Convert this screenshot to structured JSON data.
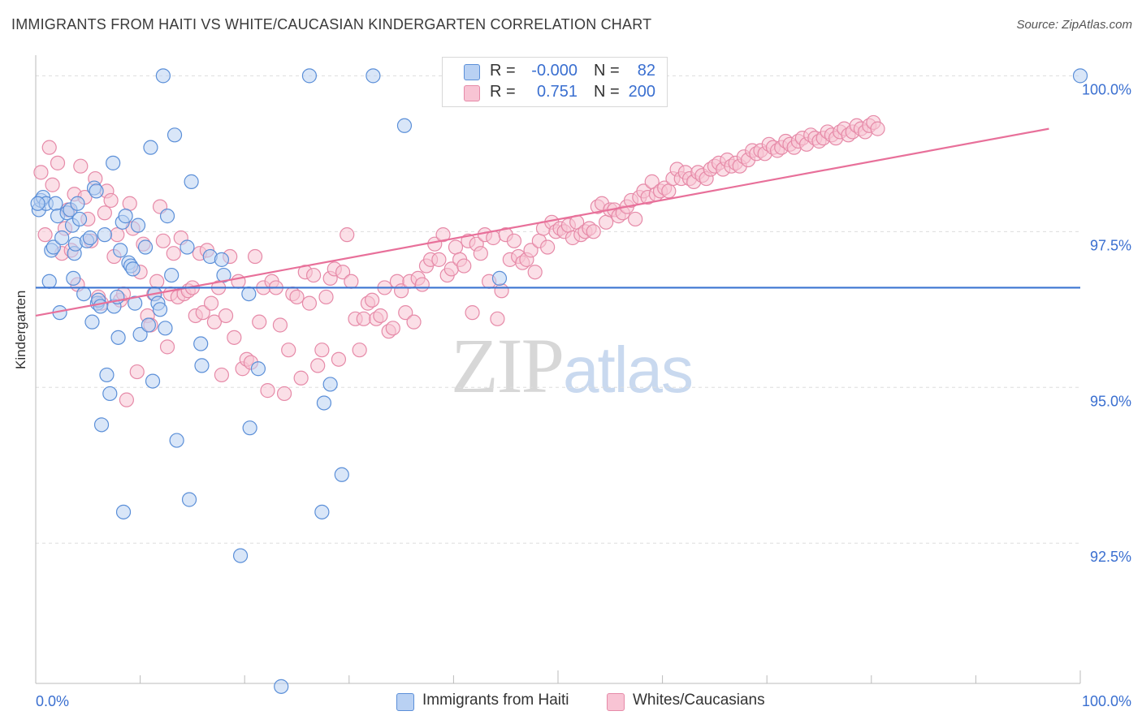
{
  "header": {
    "title": "IMMIGRANTS FROM HAITI VS WHITE/CAUCASIAN KINDERGARTEN CORRELATION CHART",
    "source": "Source: ZipAtlas.com"
  },
  "legend": {
    "row1": {
      "r_label": "R =",
      "r_value": "-0.000",
      "n_label": "N =",
      "n_value": "82"
    },
    "row2": {
      "r_label": "R =",
      "r_value": "0.751",
      "n_label": "N =",
      "n_value": "200"
    }
  },
  "watermark": {
    "zip": "ZIP",
    "atlas": "atlas"
  },
  "colors": {
    "blue_fill": "#b9d1f3",
    "blue_stroke": "#5b8fd8",
    "blue_line": "#3b74d1",
    "pink_fill": "#f8c4d4",
    "pink_stroke": "#e68aa8",
    "pink_line": "#e8709a",
    "grid": "#dddddd",
    "axis_text": "#3a6fd0"
  },
  "chart_data": {
    "type": "scatter",
    "title": "IMMIGRANTS FROM HAITI VS WHITE/CAUCASIAN KINDERGARTEN CORRELATION CHART",
    "xlabel": "",
    "ylabel": "Kindergarten",
    "xlim": [
      0,
      100
    ],
    "ylim": [
      90.25,
      100.2
    ],
    "x_tick_labels": [
      "0.0%",
      "100.0%"
    ],
    "y_ticks": [
      92.5,
      95.0,
      97.5,
      100.0
    ],
    "y_tick_labels": [
      "92.5%",
      "95.0%",
      "97.5%",
      "100.0%"
    ],
    "grid": true,
    "legend_placement": "top-center",
    "series": [
      {
        "name": "Immigrants from Haiti",
        "r": -0.0,
        "n": 82,
        "trend": {
          "x": [
            0,
            100
          ],
          "y": [
            96.6,
            96.6
          ]
        },
        "points": [
          [
            0.3,
            97.85
          ],
          [
            0.5,
            98.0
          ],
          [
            0.7,
            98.05
          ],
          [
            1.0,
            97.95
          ],
          [
            1.3,
            96.7
          ],
          [
            1.5,
            97.2
          ],
          [
            1.7,
            97.25
          ],
          [
            1.9,
            97.95
          ],
          [
            2.1,
            97.75
          ],
          [
            2.3,
            96.2
          ],
          [
            2.5,
            97.4
          ],
          [
            3.0,
            97.8
          ],
          [
            3.3,
            97.85
          ],
          [
            3.5,
            97.6
          ],
          [
            3.6,
            96.75
          ],
          [
            3.7,
            97.15
          ],
          [
            3.8,
            97.3
          ],
          [
            4.0,
            97.95
          ],
          [
            4.2,
            97.7
          ],
          [
            4.6,
            96.5
          ],
          [
            4.9,
            97.35
          ],
          [
            5.2,
            97.4
          ],
          [
            5.4,
            96.05
          ],
          [
            5.6,
            98.2
          ],
          [
            5.8,
            98.15
          ],
          [
            5.9,
            96.35
          ],
          [
            6.0,
            96.4
          ],
          [
            6.2,
            96.3
          ],
          [
            6.3,
            94.4
          ],
          [
            6.6,
            97.45
          ],
          [
            6.8,
            95.2
          ],
          [
            7.1,
            94.9
          ],
          [
            7.4,
            98.6
          ],
          [
            7.5,
            96.3
          ],
          [
            7.8,
            96.45
          ],
          [
            7.9,
            95.8
          ],
          [
            8.1,
            97.2
          ],
          [
            8.3,
            97.65
          ],
          [
            8.4,
            93.0
          ],
          [
            8.6,
            97.75
          ],
          [
            8.9,
            97.0
          ],
          [
            9.1,
            96.95
          ],
          [
            9.3,
            96.9
          ],
          [
            9.5,
            96.35
          ],
          [
            9.8,
            97.6
          ],
          [
            10.0,
            95.85
          ],
          [
            10.5,
            97.25
          ],
          [
            10.8,
            96.0
          ],
          [
            11.0,
            98.85
          ],
          [
            11.2,
            95.1
          ],
          [
            11.4,
            96.5
          ],
          [
            11.7,
            96.35
          ],
          [
            11.9,
            96.25
          ],
          [
            12.2,
            100.0
          ],
          [
            12.4,
            95.95
          ],
          [
            12.6,
            97.75
          ],
          [
            13.0,
            96.8
          ],
          [
            13.3,
            99.05
          ],
          [
            13.5,
            94.15
          ],
          [
            14.5,
            97.25
          ],
          [
            14.7,
            93.2
          ],
          [
            14.9,
            98.3
          ],
          [
            15.8,
            95.7
          ],
          [
            15.9,
            95.35
          ],
          [
            16.7,
            97.1
          ],
          [
            17.8,
            97.05
          ],
          [
            18.0,
            96.8
          ],
          [
            19.6,
            92.3
          ],
          [
            20.4,
            96.5
          ],
          [
            20.5,
            94.35
          ],
          [
            21.3,
            95.3
          ],
          [
            23.5,
            90.2
          ],
          [
            26.2,
            100.0
          ],
          [
            27.4,
            93.0
          ],
          [
            27.6,
            94.75
          ],
          [
            28.2,
            95.05
          ],
          [
            29.3,
            93.6
          ],
          [
            32.3,
            100.0
          ],
          [
            35.3,
            99.2
          ],
          [
            44.4,
            96.75
          ],
          [
            100.0,
            100.0
          ],
          [
            0.2,
            97.95
          ]
        ]
      },
      {
        "name": "Whites/Caucasians",
        "r": 0.751,
        "n": 200,
        "trend": {
          "x": [
            0,
            97
          ],
          "y": [
            96.15,
            99.15
          ]
        },
        "points": [
          [
            0.5,
            98.45
          ],
          [
            0.9,
            97.45
          ],
          [
            1.3,
            98.85
          ],
          [
            1.6,
            98.25
          ],
          [
            2.1,
            98.6
          ],
          [
            2.5,
            97.15
          ],
          [
            2.8,
            97.55
          ],
          [
            3.1,
            97.85
          ],
          [
            3.4,
            97.2
          ],
          [
            3.7,
            98.1
          ],
          [
            4.0,
            96.65
          ],
          [
            4.3,
            98.55
          ],
          [
            4.7,
            98.05
          ],
          [
            5.0,
            97.7
          ],
          [
            5.3,
            97.35
          ],
          [
            5.7,
            98.35
          ],
          [
            6.0,
            96.45
          ],
          [
            6.3,
            96.35
          ],
          [
            6.6,
            97.8
          ],
          [
            6.8,
            98.15
          ],
          [
            7.2,
            98.0
          ],
          [
            7.5,
            97.1
          ],
          [
            7.8,
            97.45
          ],
          [
            8.1,
            96.4
          ],
          [
            8.4,
            96.5
          ],
          [
            8.7,
            94.8
          ],
          [
            9.0,
            97.95
          ],
          [
            9.3,
            97.55
          ],
          [
            9.7,
            95.25
          ],
          [
            10.0,
            96.85
          ],
          [
            10.3,
            97.3
          ],
          [
            10.7,
            96.15
          ],
          [
            11.0,
            96.0
          ],
          [
            11.3,
            96.5
          ],
          [
            11.6,
            96.7
          ],
          [
            11.9,
            97.9
          ],
          [
            12.2,
            97.35
          ],
          [
            12.6,
            95.65
          ],
          [
            12.9,
            96.5
          ],
          [
            13.2,
            97.15
          ],
          [
            13.6,
            96.45
          ],
          [
            13.9,
            97.4
          ],
          [
            14.2,
            96.5
          ],
          [
            14.6,
            96.55
          ],
          [
            15.0,
            96.6
          ],
          [
            15.3,
            96.15
          ],
          [
            15.7,
            97.15
          ],
          [
            16.0,
            96.2
          ],
          [
            16.4,
            97.2
          ],
          [
            16.8,
            96.35
          ],
          [
            17.1,
            96.05
          ],
          [
            17.5,
            96.6
          ],
          [
            17.8,
            95.2
          ],
          [
            18.2,
            96.15
          ],
          [
            18.6,
            97.1
          ],
          [
            19.0,
            95.8
          ],
          [
            19.4,
            96.7
          ],
          [
            19.8,
            95.3
          ],
          [
            20.2,
            95.45
          ],
          [
            20.6,
            95.4
          ],
          [
            21.0,
            97.1
          ],
          [
            21.4,
            96.05
          ],
          [
            21.8,
            96.6
          ],
          [
            22.2,
            94.95
          ],
          [
            22.6,
            96.7
          ],
          [
            23.0,
            96.6
          ],
          [
            23.4,
            96.0
          ],
          [
            23.8,
            94.9
          ],
          [
            24.2,
            95.6
          ],
          [
            24.6,
            96.5
          ],
          [
            25.0,
            96.45
          ],
          [
            25.4,
            95.15
          ],
          [
            25.8,
            96.85
          ],
          [
            26.2,
            96.35
          ],
          [
            26.6,
            96.8
          ],
          [
            27.0,
            95.35
          ],
          [
            27.4,
            95.6
          ],
          [
            27.8,
            96.45
          ],
          [
            28.2,
            96.75
          ],
          [
            28.6,
            96.9
          ],
          [
            29.0,
            95.45
          ],
          [
            29.4,
            96.85
          ],
          [
            29.8,
            97.45
          ],
          [
            30.2,
            96.7
          ],
          [
            30.6,
            96.1
          ],
          [
            31.0,
            95.6
          ],
          [
            31.4,
            96.1
          ],
          [
            31.8,
            96.35
          ],
          [
            32.2,
            96.4
          ],
          [
            32.6,
            96.1
          ],
          [
            33.0,
            96.15
          ],
          [
            33.4,
            96.6
          ],
          [
            33.8,
            95.9
          ],
          [
            34.2,
            95.95
          ],
          [
            34.6,
            96.7
          ],
          [
            35.0,
            96.55
          ],
          [
            35.4,
            96.2
          ],
          [
            35.8,
            96.7
          ],
          [
            36.2,
            96.05
          ],
          [
            36.6,
            96.75
          ],
          [
            37.0,
            96.65
          ],
          [
            37.4,
            96.95
          ],
          [
            37.8,
            97.05
          ],
          [
            38.2,
            97.3
          ],
          [
            38.6,
            97.05
          ],
          [
            39.0,
            97.45
          ],
          [
            39.4,
            96.8
          ],
          [
            39.8,
            96.9
          ],
          [
            40.2,
            97.25
          ],
          [
            40.6,
            97.05
          ],
          [
            41.0,
            96.95
          ],
          [
            41.4,
            97.35
          ],
          [
            41.8,
            96.2
          ],
          [
            42.2,
            97.3
          ],
          [
            42.6,
            97.15
          ],
          [
            43.0,
            97.45
          ],
          [
            43.4,
            96.7
          ],
          [
            43.8,
            97.4
          ],
          [
            44.2,
            96.1
          ],
          [
            44.6,
            96.55
          ],
          [
            45.0,
            97.45
          ],
          [
            45.4,
            97.05
          ],
          [
            45.8,
            97.35
          ],
          [
            46.2,
            97.1
          ],
          [
            46.6,
            97.0
          ],
          [
            47.0,
            97.05
          ],
          [
            47.4,
            97.2
          ],
          [
            47.8,
            96.85
          ],
          [
            48.2,
            97.35
          ],
          [
            48.6,
            97.55
          ],
          [
            49.0,
            97.25
          ],
          [
            49.4,
            97.65
          ],
          [
            49.8,
            97.5
          ],
          [
            50.2,
            97.55
          ],
          [
            50.6,
            97.5
          ],
          [
            51.0,
            97.6
          ],
          [
            51.4,
            97.4
          ],
          [
            51.8,
            97.65
          ],
          [
            52.2,
            97.45
          ],
          [
            52.6,
            97.5
          ],
          [
            53.0,
            97.55
          ],
          [
            53.4,
            97.5
          ],
          [
            53.8,
            97.9
          ],
          [
            54.2,
            97.95
          ],
          [
            54.6,
            97.65
          ],
          [
            55.0,
            97.85
          ],
          [
            55.4,
            97.85
          ],
          [
            55.8,
            97.75
          ],
          [
            56.2,
            97.8
          ],
          [
            56.6,
            97.9
          ],
          [
            57.0,
            98.0
          ],
          [
            57.4,
            97.7
          ],
          [
            57.8,
            98.05
          ],
          [
            58.2,
            98.15
          ],
          [
            58.6,
            98.05
          ],
          [
            59.0,
            98.3
          ],
          [
            59.4,
            98.1
          ],
          [
            59.8,
            98.15
          ],
          [
            60.2,
            98.2
          ],
          [
            60.6,
            98.15
          ],
          [
            61.0,
            98.35
          ],
          [
            61.4,
            98.5
          ],
          [
            61.8,
            98.35
          ],
          [
            62.2,
            98.45
          ],
          [
            62.6,
            98.35
          ],
          [
            63.0,
            98.3
          ],
          [
            63.4,
            98.45
          ],
          [
            63.8,
            98.4
          ],
          [
            64.2,
            98.35
          ],
          [
            64.6,
            98.5
          ],
          [
            65.0,
            98.55
          ],
          [
            65.4,
            98.6
          ],
          [
            65.8,
            98.5
          ],
          [
            66.2,
            98.65
          ],
          [
            66.6,
            98.55
          ],
          [
            67.0,
            98.6
          ],
          [
            67.4,
            98.55
          ],
          [
            67.8,
            98.7
          ],
          [
            68.2,
            98.65
          ],
          [
            68.6,
            98.8
          ],
          [
            69.0,
            98.75
          ],
          [
            69.4,
            98.8
          ],
          [
            69.8,
            98.75
          ],
          [
            70.2,
            98.9
          ],
          [
            70.6,
            98.85
          ],
          [
            71.0,
            98.8
          ],
          [
            71.4,
            98.85
          ],
          [
            71.8,
            98.95
          ],
          [
            72.2,
            98.9
          ],
          [
            72.6,
            98.85
          ],
          [
            73.0,
            98.95
          ],
          [
            73.4,
            99.0
          ],
          [
            73.8,
            98.9
          ],
          [
            74.2,
            99.05
          ],
          [
            74.6,
            99.0
          ],
          [
            75.0,
            98.95
          ],
          [
            75.4,
            99.0
          ],
          [
            75.8,
            99.1
          ],
          [
            76.2,
            99.05
          ],
          [
            76.6,
            99.0
          ],
          [
            77.0,
            99.1
          ],
          [
            77.4,
            99.15
          ],
          [
            77.8,
            99.05
          ],
          [
            78.2,
            99.1
          ],
          [
            78.6,
            99.2
          ],
          [
            79.0,
            99.15
          ],
          [
            79.4,
            99.1
          ],
          [
            79.8,
            99.2
          ],
          [
            80.2,
            99.25
          ],
          [
            80.6,
            99.15
          ]
        ]
      }
    ]
  },
  "bottom_legend": {
    "series1": "Immigrants from Haiti",
    "series2": "Whites/Caucasians"
  }
}
